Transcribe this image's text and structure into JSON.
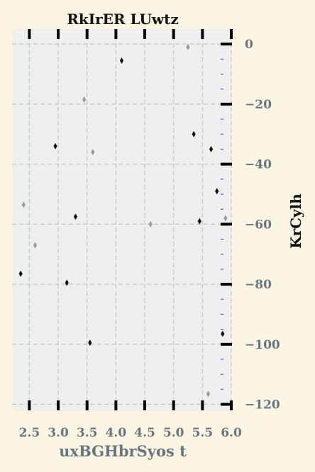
{
  "chart_data": {
    "type": "scatter",
    "title": "RkIrER LUwtz",
    "xlabel": "uxBGHbrSyos  t",
    "ylabel": "KrCylh",
    "xlim": [
      2.2,
      6.0
    ],
    "ylim": [
      -122,
      5
    ],
    "x_ticks": [
      2.5,
      3.0,
      3.5,
      4.0,
      4.5,
      5.0,
      5.5,
      6.0
    ],
    "x_tick_labels": [
      "2.5",
      "3.0",
      "3.5",
      "4.0",
      "4.5",
      "5.0",
      "5.5",
      "6.0"
    ],
    "y_ticks": [
      0,
      -20,
      -40,
      -60,
      -80,
      -100,
      -120
    ],
    "y_tick_labels": [
      "0",
      "−20",
      "−40",
      "−60",
      "−80",
      "−100",
      "−120"
    ],
    "grid": true,
    "y_axis_position": "right",
    "series": [
      {
        "color": "#111111",
        "points": [
          [
            4.1,
            -5.5
          ],
          [
            5.35,
            -30
          ],
          [
            2.95,
            -34
          ],
          [
            5.45,
            -59
          ],
          [
            3.3,
            -57.5
          ],
          [
            2.35,
            -76.5
          ],
          [
            3.15,
            -79.5
          ],
          [
            5.85,
            -96.5
          ],
          [
            3.55,
            -99.5
          ],
          [
            5.75,
            -49
          ],
          [
            5.65,
            -35
          ]
        ]
      },
      {
        "color": "#9a9a9a",
        "points": [
          [
            5.25,
            -1
          ],
          [
            3.45,
            -18.5
          ],
          [
            3.6,
            -36
          ],
          [
            2.4,
            -53.5
          ],
          [
            4.6,
            -60
          ],
          [
            2.6,
            -67
          ],
          [
            5.6,
            -116.5
          ],
          [
            5.9,
            -58
          ]
        ]
      }
    ]
  }
}
